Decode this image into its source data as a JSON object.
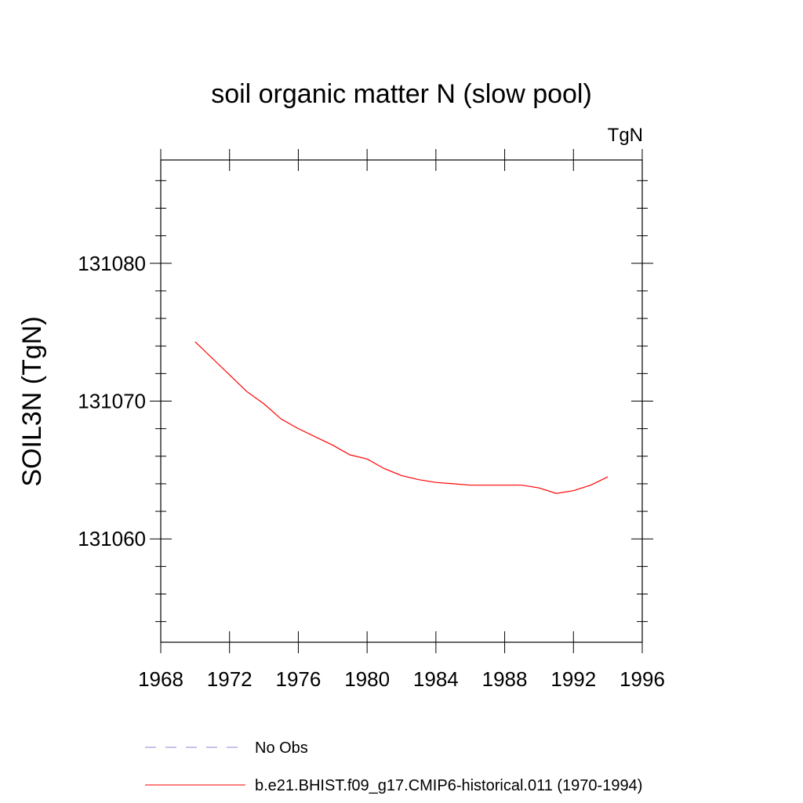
{
  "chart_data": {
    "type": "line",
    "title": "soil organic matter N (slow pool)",
    "units": "TgN",
    "ylabel": "SOIL3N  (TgN)",
    "xlabel": "",
    "xlim": [
      1968,
      1996
    ],
    "ylim": [
      131052.5,
      131087.5
    ],
    "xticks": [
      1968,
      1972,
      1976,
      1980,
      1984,
      1988,
      1992,
      1996
    ],
    "yticks": [
      131060,
      131070,
      131080
    ],
    "x_minor_step": 4,
    "y_minor_step": 2,
    "grid": false,
    "legend_position": "bottom",
    "series": [
      {
        "name": "b.e21.BHIST.f09_g17.CMIP6-historical.011 (1970-1994)",
        "color": "#ff0000",
        "style": "solid",
        "x": [
          1970,
          1971,
          1972,
          1973,
          1974,
          1975,
          1976,
          1977,
          1978,
          1979,
          1980,
          1981,
          1982,
          1983,
          1984,
          1985,
          1986,
          1987,
          1988,
          1989,
          1990,
          1991,
          1992,
          1993,
          1994
        ],
        "values": [
          131074.3,
          131073.1,
          131071.9,
          131070.7,
          131069.8,
          131068.7,
          131068.0,
          131067.4,
          131066.8,
          131066.1,
          131065.8,
          131065.1,
          131064.6,
          131064.3,
          131064.1,
          131064.0,
          131063.9,
          131063.9,
          131063.9,
          131063.9,
          131063.7,
          131063.3,
          131063.5,
          131063.9,
          131064.5
        ]
      },
      {
        "name": "No Obs",
        "color": "#8a8ad6",
        "style": "dashed",
        "x": [],
        "values": []
      }
    ]
  }
}
